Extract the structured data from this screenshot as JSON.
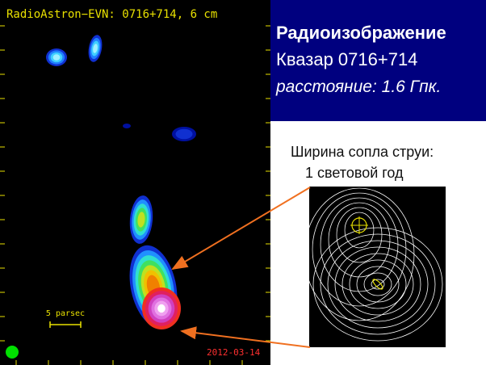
{
  "image_panel": {
    "title": "RadioAstron−EVN: 0716+714, 6 cm",
    "scale_label": "5 parsec",
    "date": "2012-03-14"
  },
  "header": {
    "title": "Радиоизображение",
    "subtitle": "Квазар 0716+714",
    "distance": "расстояние: 1.6 Гпк."
  },
  "annotation": {
    "line1": "Ширина сопла струи:",
    "line2": "1 световой год"
  }
}
